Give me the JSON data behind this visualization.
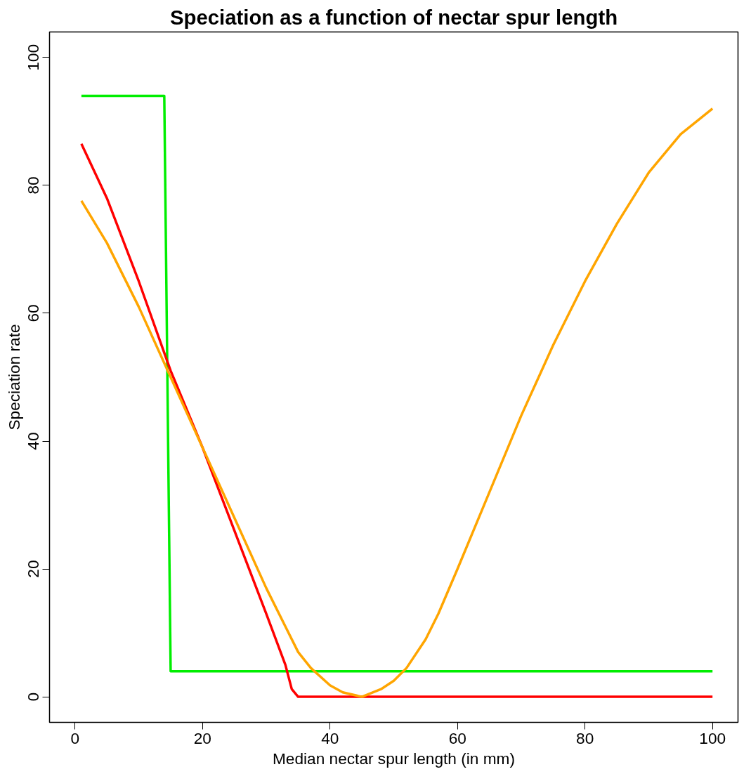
{
  "chart_data": {
    "type": "line",
    "title": "Speciation as a function of nectar spur length",
    "xlabel": "Median nectar spur length (in mm)",
    "ylabel": "Speciation rate",
    "xlim": [
      -4,
      104
    ],
    "ylim": [
      -4,
      104
    ],
    "xticks": [
      0,
      20,
      40,
      60,
      80,
      100
    ],
    "yticks": [
      0,
      20,
      40,
      60,
      80,
      100
    ],
    "grid": false,
    "series": [
      {
        "color": "#00ee00",
        "x": [
          1,
          14,
          15,
          100
        ],
        "values": [
          94,
          94,
          4,
          4
        ]
      },
      {
        "color": "#ff0000",
        "x": [
          1,
          5,
          10,
          15,
          20,
          25,
          30,
          33,
          34,
          35,
          100
        ],
        "values": [
          86.5,
          78,
          65,
          51,
          39,
          26,
          13,
          5,
          1.2,
          0,
          0
        ]
      },
      {
        "color": "#ffa500",
        "x": [
          1,
          5,
          10,
          15,
          20,
          25,
          30,
          33,
          35,
          37,
          40,
          42,
          45,
          48,
          50,
          52,
          55,
          57,
          60,
          65,
          70,
          75,
          80,
          85,
          90,
          95,
          100
        ],
        "values": [
          77.6,
          71,
          61,
          50,
          39,
          28,
          17,
          11,
          7,
          4.5,
          1.8,
          0.7,
          0,
          1.2,
          2.5,
          4.5,
          9,
          13,
          20,
          32,
          44,
          55,
          65,
          74,
          82,
          88,
          92
        ]
      }
    ]
  }
}
